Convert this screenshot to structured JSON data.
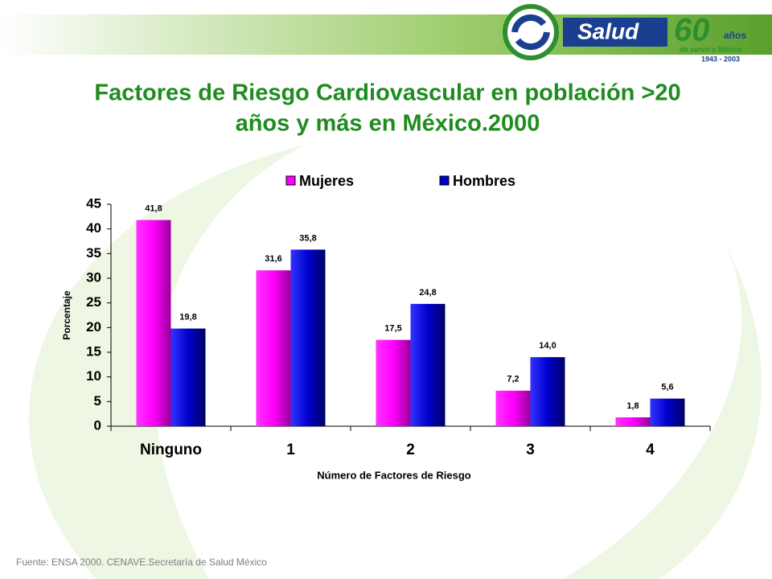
{
  "logo": {
    "name": "Salud",
    "number": "60",
    "years": "años",
    "tagline": "de servir a México",
    "period": "1943 - 2003"
  },
  "chart_data": {
    "type": "bar",
    "title": "Factores de Riesgo Cardiovascular en población >20",
    "title_line2": "años y más en México.2000",
    "categories": [
      "Ninguno",
      "1",
      "2",
      "3",
      "4"
    ],
    "series": [
      {
        "name": "Mujeres",
        "color": "#ff00ff",
        "values": [
          41.8,
          31.6,
          17.5,
          7.2,
          1.8
        ],
        "value_labels": [
          "41,8",
          "31,6",
          "17,5",
          "7,2",
          "1,8"
        ]
      },
      {
        "name": "Hombres",
        "color": "#0000cc",
        "values": [
          19.8,
          35.8,
          24.8,
          14.0,
          5.6
        ],
        "value_labels": [
          "19,8",
          "35,8",
          "24,8",
          "14,0",
          "5,6"
        ]
      }
    ],
    "ylim": [
      0,
      45
    ],
    "yticks": [
      0,
      5,
      10,
      15,
      20,
      25,
      30,
      35,
      40,
      45
    ],
    "y_label": "Porcentaje",
    "x_label": "Número de Factores de Riesgo",
    "legend": "top"
  },
  "source": "Fuente: ENSA 2000. CENAVE.Secretaría de Salud México"
}
